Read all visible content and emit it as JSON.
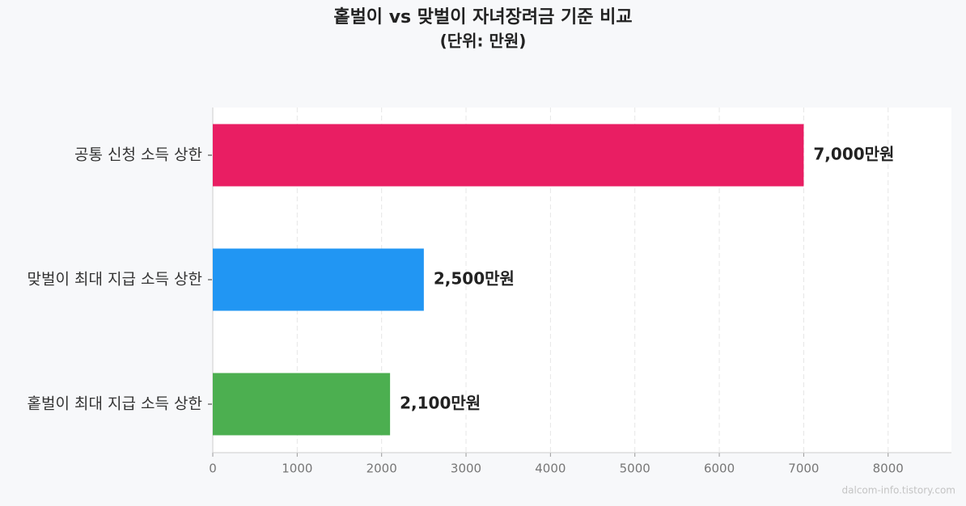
{
  "chart_data": {
    "type": "bar",
    "orientation": "horizontal",
    "title": "홑벌이 vs 맞벌이 자녀장려금 기준 비교",
    "subtitle": "(단위: 만원)",
    "categories": [
      "공통 신청 소득 상한",
      "맞벌이 최대 지급 소득 상한",
      "홑벌이 최대 지급 소득 상한"
    ],
    "values": [
      7000,
      2500,
      2100
    ],
    "value_labels": [
      "7,000만원",
      "2,500만원",
      "2,100만원"
    ],
    "colors": [
      "#e91e63",
      "#2196f3",
      "#4caf50"
    ],
    "xlim": [
      0,
      8750
    ],
    "xticks": [
      0,
      1000,
      2000,
      3000,
      4000,
      5000,
      6000,
      7000,
      8000
    ],
    "grid": true,
    "watermark": "dalcom-info.tistory.com"
  }
}
